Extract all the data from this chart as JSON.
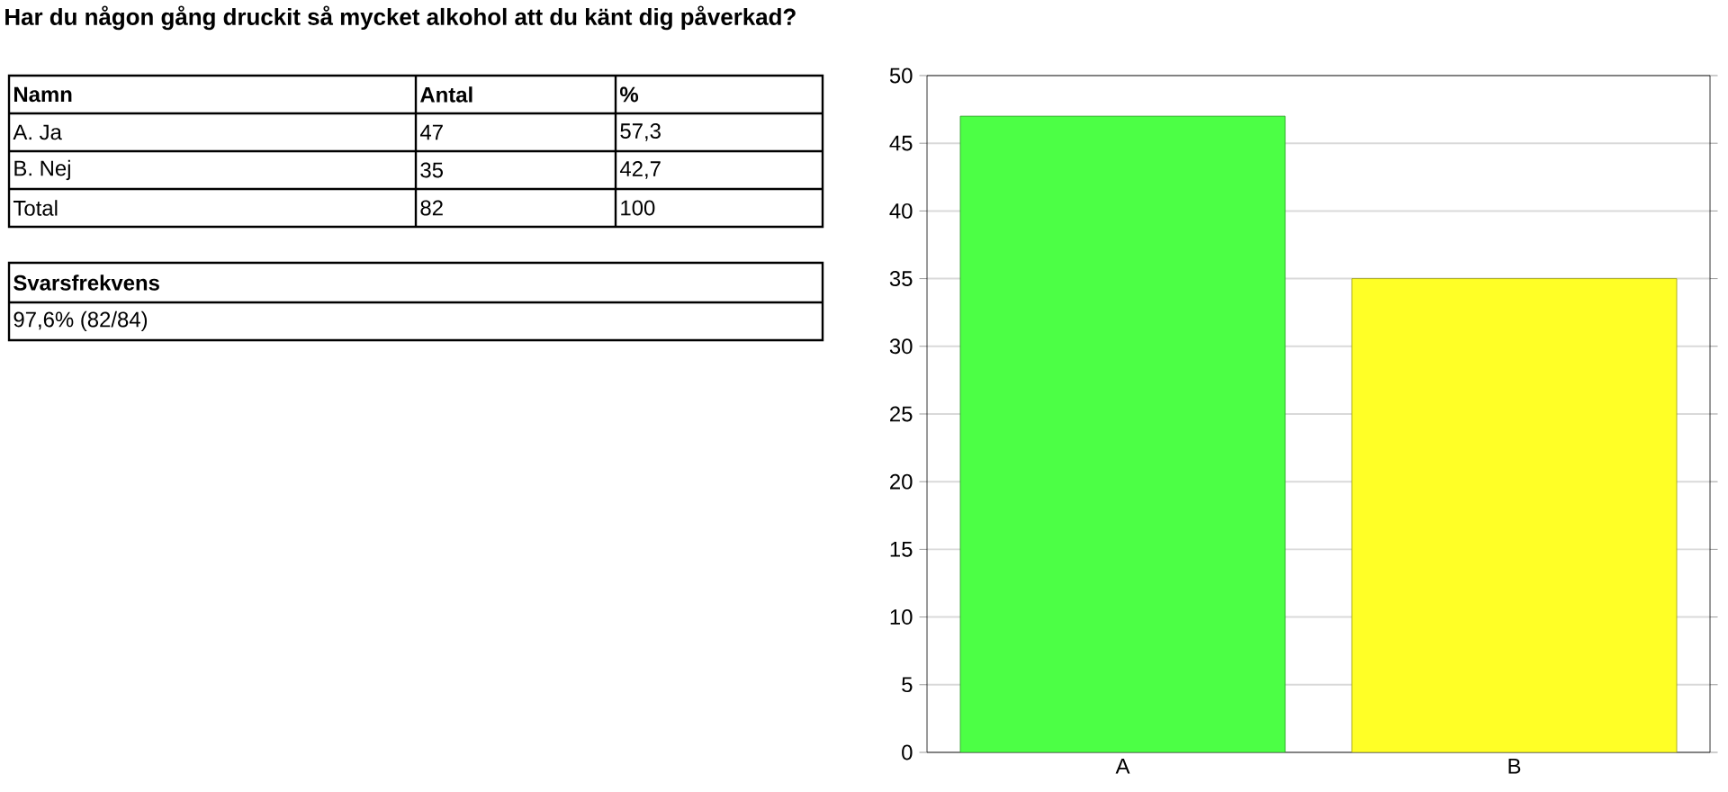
{
  "chart_data": {
    "type": "bar",
    "title": "Har du någon gång druckit så mycket alkohol att du känt dig påverkad?",
    "categories": [
      "A",
      "B"
    ],
    "values": [
      47,
      35
    ],
    "colors": [
      "#4cff45",
      "#ffff26"
    ],
    "ylim": [
      0,
      50
    ],
    "yticks": [
      0,
      5,
      10,
      15,
      20,
      25,
      30,
      35,
      40,
      45,
      50
    ],
    "grid": "y",
    "annotations": [
      "Namn",
      "Antal",
      "%",
      "A. Ja",
      "47",
      "57,3",
      "B. Nej",
      "35",
      "42,7",
      "Total",
      "82",
      "100",
      "Svarsfrekvens",
      "97,6% (82/84)"
    ]
  }
}
